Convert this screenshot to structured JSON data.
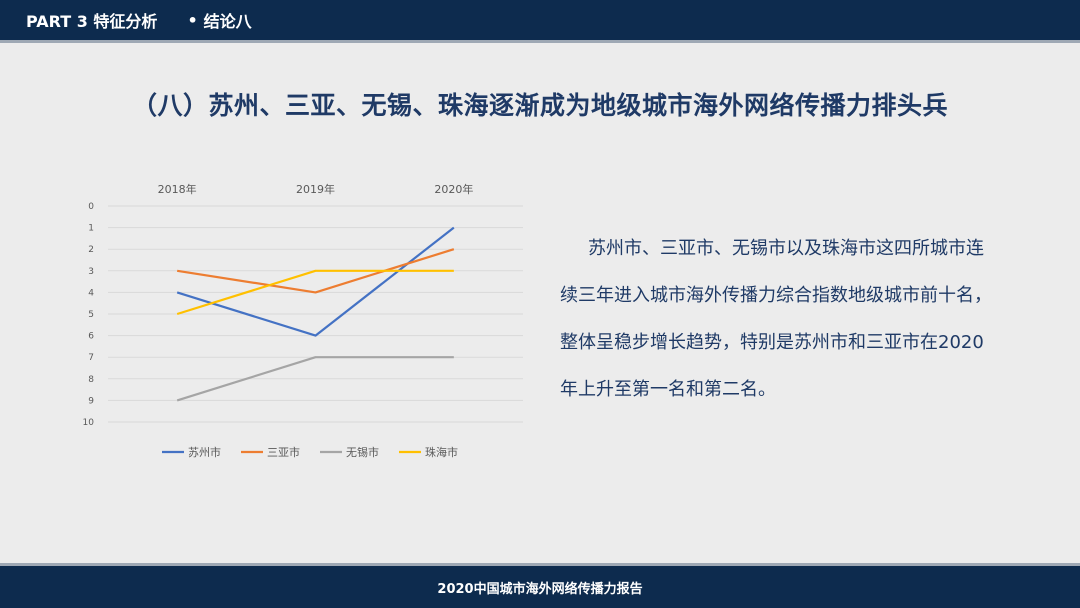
{
  "header": {
    "part_label": "PART 3 特征分析",
    "bullet": "•",
    "section_label": "结论八"
  },
  "title": "（八）苏州、三亚、无锡、珠海逐渐成为地级城市海外网络传播力排头兵",
  "body_text": "苏州市、三亚市、无锡市以及珠海市这四所城市连续三年进入城市海外传播力综合指数地级城市前十名，整体呈稳步增长趋势，特别是苏州市和三亚市在2020年上升至第一名和第二名。",
  "footer": "2020中国城市海外网络传播力报告",
  "chart_data": {
    "type": "line",
    "categories": [
      "2018年",
      "2019年",
      "2020年"
    ],
    "y_axis": {
      "reversed": true,
      "min": 0,
      "max": 10,
      "ticks": [
        0,
        1,
        2,
        3,
        4,
        5,
        6,
        7,
        8,
        9,
        10
      ]
    },
    "x_axis_position": "top",
    "grid": true,
    "legend": "bottom",
    "series": [
      {
        "name": "苏州市",
        "values": [
          4,
          6,
          1
        ],
        "color": "#4472c4"
      },
      {
        "name": "三亚市",
        "values": [
          3,
          4,
          2
        ],
        "color": "#ed7d31"
      },
      {
        "name": "无锡市",
        "values": [
          9,
          7,
          7
        ],
        "color": "#a5a5a5"
      },
      {
        "name": "珠海市",
        "values": [
          5,
          3,
          3
        ],
        "color": "#ffc000"
      }
    ]
  }
}
